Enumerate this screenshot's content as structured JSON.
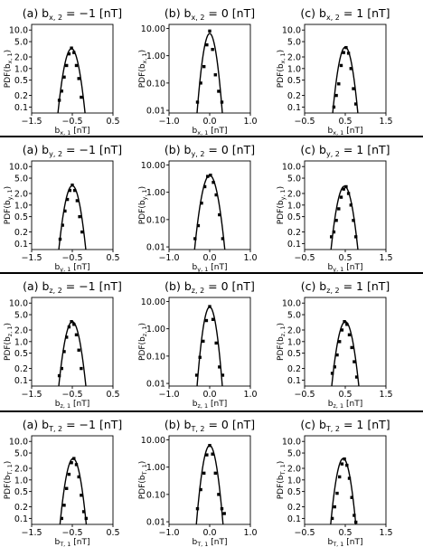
{
  "chart_data": [
    {
      "row": 0,
      "col": 0,
      "type": "scatter",
      "title": "(a) b",
      "title_sub": "x, 2",
      "title_rest": " = −1 [nT]",
      "xlabel": "b",
      "xlabel_sub": "x, 1",
      "xlabel_rest": " [nT]",
      "ylabel": "PDF(b",
      "ylabel_sub": "x, 1",
      "ylabel_rest": ")",
      "xlim": [
        -1.5,
        0.5
      ],
      "xticks": [
        -1.5,
        -0.5,
        0.5
      ],
      "xtick_labels": [
        "−1.5",
        "−0.5",
        "0.5"
      ],
      "yscale": "log",
      "ylim": [
        0.07,
        14
      ],
      "yticks": [
        0.1,
        0.2,
        0.5,
        1.0,
        2.0,
        5.0,
        10.0
      ],
      "ytick_labels": [
        "0.1",
        "0.2",
        "0.5",
        "1.0",
        "2.0",
        "5.0",
        "10.0"
      ],
      "fit": {
        "mu": -0.52,
        "sigma": 0.12,
        "amp": 3.3
      },
      "points": [
        [
          -0.82,
          0.15
        ],
        [
          -0.76,
          0.26
        ],
        [
          -0.7,
          0.6
        ],
        [
          -0.64,
          1.2
        ],
        [
          -0.58,
          2.4
        ],
        [
          -0.52,
          3.4
        ],
        [
          -0.46,
          2.6
        ],
        [
          -0.4,
          1.2
        ],
        [
          -0.34,
          0.55
        ],
        [
          -0.28,
          0.18
        ]
      ]
    },
    {
      "row": 0,
      "col": 1,
      "type": "scatter",
      "title": "(b) b",
      "title_sub": "x, 2",
      "title_rest": " = 0 [nT]",
      "xlabel": "b",
      "xlabel_sub": "x, 1",
      "xlabel_rest": " [nT]",
      "ylabel": "PDF(b",
      "ylabel_sub": "x, 1",
      "ylabel_rest": ")",
      "xlim": [
        -1.0,
        1.0
      ],
      "xticks": [
        -1.0,
        0.0,
        1.0
      ],
      "xtick_labels": [
        "−1.0",
        "0.0",
        "1.0"
      ],
      "yscale": "log",
      "ylim": [
        0.008,
        14
      ],
      "yticks": [
        0.01,
        0.1,
        1.0,
        10.0
      ],
      "ytick_labels": [
        "0.01",
        "0.10",
        "1.00",
        "10.00"
      ],
      "fit": {
        "mu": 0.0,
        "sigma": 0.085,
        "amp": 6.5
      },
      "points": [
        [
          -0.3,
          0.02
        ],
        [
          -0.22,
          0.1
        ],
        [
          -0.14,
          0.4
        ],
        [
          -0.07,
          2.5
        ],
        [
          0.0,
          8.0
        ],
        [
          0.07,
          1.7
        ],
        [
          0.14,
          0.2
        ],
        [
          0.22,
          0.05
        ],
        [
          0.3,
          0.02
        ]
      ]
    },
    {
      "row": 0,
      "col": 2,
      "type": "scatter",
      "title": "(c) b",
      "title_sub": "x, 2",
      "title_rest": " = 1 [nT]",
      "xlabel": "b",
      "xlabel_sub": "x, 1",
      "xlabel_rest": " [nT]",
      "ylabel": "PDF(b",
      "ylabel_sub": "x, 1",
      "ylabel_rest": ")",
      "xlim": [
        -0.5,
        1.5
      ],
      "xticks": [
        -0.5,
        0.5,
        1.5
      ],
      "xtick_labels": [
        "−0.5",
        "0.5",
        "1.5"
      ],
      "yscale": "log",
      "ylim": [
        0.07,
        14
      ],
      "yticks": [
        0.1,
        0.2,
        0.5,
        1.0,
        2.0,
        5.0,
        10.0
      ],
      "ytick_labels": [
        "0.1",
        "0.2",
        "0.5",
        "1.0",
        "2.0",
        "5.0",
        "10.0"
      ],
      "fit": {
        "mu": 0.5,
        "sigma": 0.11,
        "amp": 3.6
      },
      "points": [
        [
          0.22,
          0.1
        ],
        [
          0.28,
          0.2
        ],
        [
          0.34,
          0.4
        ],
        [
          0.4,
          1.2
        ],
        [
          0.46,
          2.6
        ],
        [
          0.52,
          3.5
        ],
        [
          0.58,
          2.5
        ],
        [
          0.64,
          1.0
        ],
        [
          0.7,
          0.3
        ],
        [
          0.76,
          0.12
        ]
      ]
    },
    {
      "row": 1,
      "col": 0,
      "type": "scatter",
      "title": "(a) b",
      "title_sub": "y, 2",
      "title_rest": " = −1 [nT]",
      "xlabel": "b",
      "xlabel_sub": "y, 1",
      "xlabel_rest": " [nT]",
      "ylabel": "PDF(b",
      "ylabel_sub": "y, 1",
      "ylabel_rest": ")",
      "xlim": [
        -1.5,
        0.5
      ],
      "xticks": [
        -1.5,
        -0.5,
        0.5
      ],
      "xtick_labels": [
        "−1.5",
        "−0.5",
        "0.5"
      ],
      "yscale": "log",
      "ylim": [
        0.07,
        14
      ],
      "yticks": [
        0.1,
        0.2,
        0.5,
        1.0,
        2.0,
        5.0,
        10.0
      ],
      "ytick_labels": [
        "0.1",
        "0.2",
        "0.5",
        "1.0",
        "2.0",
        "5.0",
        "10.0"
      ],
      "fit": {
        "mu": -0.5,
        "sigma": 0.12,
        "amp": 3.2
      },
      "points": [
        [
          -0.8,
          0.13
        ],
        [
          -0.74,
          0.3
        ],
        [
          -0.68,
          0.7
        ],
        [
          -0.62,
          1.4
        ],
        [
          -0.56,
          2.4
        ],
        [
          -0.5,
          3.3
        ],
        [
          -0.44,
          2.4
        ],
        [
          -0.38,
          1.3
        ],
        [
          -0.32,
          0.5
        ],
        [
          -0.26,
          0.2
        ]
      ]
    },
    {
      "row": 1,
      "col": 1,
      "type": "scatter",
      "title": "(b) b",
      "title_sub": "y, 2",
      "title_rest": " = 0 [nT]",
      "xlabel": "b",
      "xlabel_sub": "y, 1",
      "xlabel_rest": " [nT]",
      "ylabel": "PDF(b",
      "ylabel_sub": "y, 1",
      "ylabel_rest": ")",
      "xlim": [
        -1.0,
        1.0
      ],
      "xticks": [
        -1.0,
        0.0,
        1.0
      ],
      "xtick_labels": [
        "−1.0",
        "0.0",
        "1.0"
      ],
      "yscale": "log",
      "ylim": [
        0.008,
        14
      ],
      "yticks": [
        0.01,
        0.1,
        1.0,
        10.0
      ],
      "ytick_labels": [
        "0.01",
        "0.10",
        "1.00",
        "10.00"
      ],
      "fit": {
        "mu": 0.0,
        "sigma": 0.105,
        "amp": 4.2
      },
      "points": [
        [
          -0.36,
          0.02
        ],
        [
          -0.28,
          0.06
        ],
        [
          -0.2,
          0.4
        ],
        [
          -0.12,
          1.6
        ],
        [
          -0.05,
          3.8
        ],
        [
          0.02,
          4.2
        ],
        [
          0.09,
          2.3
        ],
        [
          0.16,
          0.8
        ],
        [
          0.24,
          0.15
        ],
        [
          0.32,
          0.02
        ]
      ]
    },
    {
      "row": 1,
      "col": 2,
      "type": "scatter",
      "title": "(c) b",
      "title_sub": "y, 2",
      "title_rest": " = 1 [nT]",
      "xlabel": "b",
      "xlabel_sub": "y, 1",
      "xlabel_rest": " [nT]",
      "ylabel": "PDF(b",
      "ylabel_sub": "y, 1",
      "ylabel_rest": ")",
      "xlim": [
        -0.5,
        1.5
      ],
      "xticks": [
        -0.5,
        0.5,
        1.5
      ],
      "xtick_labels": [
        "−0.5",
        "0.5",
        "1.5"
      ],
      "yscale": "log",
      "ylim": [
        0.07,
        14
      ],
      "yticks": [
        0.1,
        0.2,
        0.5,
        1.0,
        2.0,
        5.0,
        10.0
      ],
      "ytick_labels": [
        "0.1",
        "0.2",
        "0.5",
        "1.0",
        "2.0",
        "5.0",
        "10.0"
      ],
      "fit": {
        "mu": 0.48,
        "sigma": 0.12,
        "amp": 3.1
      },
      "points": [
        [
          0.16,
          0.15
        ],
        [
          0.22,
          0.2
        ],
        [
          0.28,
          0.4
        ],
        [
          0.34,
          0.8
        ],
        [
          0.4,
          1.6
        ],
        [
          0.46,
          2.6
        ],
        [
          0.52,
          3.0
        ],
        [
          0.58,
          2.0
        ],
        [
          0.64,
          1.0
        ],
        [
          0.7,
          0.4
        ],
        [
          0.76,
          0.15
        ]
      ]
    },
    {
      "row": 2,
      "col": 0,
      "type": "scatter",
      "title": "(a) b",
      "title_sub": "z, 2",
      "title_rest": " = −1 [nT]",
      "xlabel": "b",
      "xlabel_sub": "z, 1",
      "xlabel_rest": " [nT]",
      "ylabel": "PDF(b",
      "ylabel_sub": "z, 1",
      "ylabel_rest": ")",
      "xlim": [
        -1.5,
        0.5
      ],
      "xticks": [
        -1.5,
        -0.5,
        0.5
      ],
      "xtick_labels": [
        "−1.5",
        "−0.5",
        "0.5"
      ],
      "yscale": "log",
      "ylim": [
        0.07,
        14
      ],
      "yticks": [
        0.1,
        0.2,
        0.5,
        1.0,
        2.0,
        5.0,
        10.0
      ],
      "ytick_labels": [
        "0.1",
        "0.2",
        "0.5",
        "1.0",
        "2.0",
        "5.0",
        "10.0"
      ],
      "fit": {
        "mu": -0.5,
        "sigma": 0.12,
        "amp": 3.3
      },
      "points": [
        [
          -0.82,
          0.13
        ],
        [
          -0.76,
          0.2
        ],
        [
          -0.7,
          0.55
        ],
        [
          -0.64,
          1.3
        ],
        [
          -0.58,
          2.4
        ],
        [
          -0.52,
          3.3
        ],
        [
          -0.46,
          2.8
        ],
        [
          -0.4,
          1.5
        ],
        [
          -0.34,
          0.6
        ],
        [
          -0.28,
          0.2
        ]
      ]
    },
    {
      "row": 2,
      "col": 1,
      "type": "scatter",
      "title": "(b) b",
      "title_sub": "z, 2",
      "title_rest": " = 0 [nT]",
      "xlabel": "b",
      "xlabel_sub": "z, 1",
      "xlabel_rest": " [nT]",
      "ylabel": "PDF(b",
      "ylabel_sub": "z, 1",
      "ylabel_rest": ")",
      "xlim": [
        -1.0,
        1.0
      ],
      "xticks": [
        -1.0,
        0.0,
        1.0
      ],
      "xtick_labels": [
        "−1.0",
        "0.0",
        "1.0"
      ],
      "yscale": "log",
      "ylim": [
        0.008,
        14
      ],
      "yticks": [
        0.01,
        0.1,
        1.0,
        10.0
      ],
      "ytick_labels": [
        "0.01",
        "0.10",
        "1.00",
        "10.00"
      ],
      "fit": {
        "mu": 0.0,
        "sigma": 0.085,
        "amp": 6.3
      },
      "points": [
        [
          -0.32,
          0.02
        ],
        [
          -0.24,
          0.09
        ],
        [
          -0.16,
          0.35
        ],
        [
          -0.08,
          2.0
        ],
        [
          0.0,
          6.5
        ],
        [
          0.08,
          2.2
        ],
        [
          0.16,
          0.3
        ],
        [
          0.24,
          0.04
        ],
        [
          0.32,
          0.02
        ]
      ]
    },
    {
      "row": 2,
      "col": 2,
      "type": "scatter",
      "title": "(c) b",
      "title_sub": "z, 2",
      "title_rest": " = 1 [nT]",
      "xlabel": "b",
      "xlabel_sub": "z, 1",
      "xlabel_rest": " [nT]",
      "ylabel": "PDF(b",
      "ylabel_sub": "z, 1",
      "ylabel_rest": ")",
      "xlim": [
        -0.5,
        1.5
      ],
      "xticks": [
        -0.5,
        0.5,
        1.5
      ],
      "xtick_labels": [
        "−0.5",
        "0.5",
        "1.5"
      ],
      "yscale": "log",
      "ylim": [
        0.07,
        14
      ],
      "yticks": [
        0.1,
        0.2,
        0.5,
        1.0,
        2.0,
        5.0,
        10.0
      ],
      "ytick_labels": [
        "0.1",
        "0.2",
        "0.5",
        "1.0",
        "2.0",
        "5.0",
        "10.0"
      ],
      "fit": {
        "mu": 0.5,
        "sigma": 0.12,
        "amp": 3.3
      },
      "points": [
        [
          0.18,
          0.15
        ],
        [
          0.24,
          0.22
        ],
        [
          0.3,
          0.45
        ],
        [
          0.36,
          1.0
        ],
        [
          0.42,
          2.0
        ],
        [
          0.48,
          3.3
        ],
        [
          0.54,
          2.8
        ],
        [
          0.6,
          1.5
        ],
        [
          0.66,
          0.7
        ],
        [
          0.72,
          0.3
        ],
        [
          0.78,
          0.12
        ]
      ]
    },
    {
      "row": 3,
      "col": 0,
      "type": "scatter",
      "title": "(a) b",
      "title_sub": "T, 2",
      "title_rest": " = −1 [nT]",
      "xlabel": "b",
      "xlabel_sub": "T, 1",
      "xlabel_rest": " [nT]",
      "ylabel": "PDF(b",
      "ylabel_sub": "T, 1",
      "ylabel_rest": ")",
      "xlim": [
        -1.5,
        0.5
      ],
      "xticks": [
        -1.5,
        -0.5,
        0.5
      ],
      "xtick_labels": [
        "−1.5",
        "−0.5",
        "0.5"
      ],
      "yscale": "log",
      "ylim": [
        0.07,
        14
      ],
      "yticks": [
        0.1,
        0.2,
        0.5,
        1.0,
        2.0,
        5.0,
        10.0
      ],
      "ytick_labels": [
        "0.1",
        "0.2",
        "0.5",
        "1.0",
        "2.0",
        "5.0",
        "10.0"
      ],
      "fit": {
        "mu": -0.48,
        "sigma": 0.115,
        "amp": 3.6
      },
      "points": [
        [
          -0.76,
          0.1
        ],
        [
          -0.7,
          0.22
        ],
        [
          -0.64,
          0.6
        ],
        [
          -0.58,
          1.4
        ],
        [
          -0.52,
          2.8
        ],
        [
          -0.46,
          3.6
        ],
        [
          -0.4,
          2.5
        ],
        [
          -0.34,
          1.2
        ],
        [
          -0.28,
          0.4
        ],
        [
          -0.22,
          0.15
        ],
        [
          -0.16,
          0.1
        ]
      ]
    },
    {
      "row": 3,
      "col": 1,
      "type": "scatter",
      "title": "(b) b",
      "title_sub": "T, 2",
      "title_rest": " = 0 [nT]",
      "xlabel": "b",
      "xlabel_sub": "T, 1",
      "xlabel_rest": " [nT]",
      "ylabel": "PDF(b",
      "ylabel_sub": "T, 1",
      "ylabel_rest": ")",
      "xlim": [
        -1.0,
        1.0
      ],
      "xticks": [
        -1.0,
        0.0,
        1.0
      ],
      "xtick_labels": [
        "−1.0",
        "0.0",
        "1.0"
      ],
      "yscale": "log",
      "ylim": [
        0.008,
        14
      ],
      "yticks": [
        0.01,
        0.1,
        1.0,
        10.0
      ],
      "ytick_labels": [
        "0.01",
        "0.10",
        "1.00",
        "10.00"
      ],
      "fit": {
        "mu": 0.0,
        "sigma": 0.09,
        "amp": 6.2
      },
      "points": [
        [
          -0.3,
          0.03
        ],
        [
          -0.22,
          0.15
        ],
        [
          -0.14,
          0.6
        ],
        [
          -0.07,
          2.8
        ],
        [
          0.0,
          6.2
        ],
        [
          0.07,
          3.0
        ],
        [
          0.14,
          0.6
        ],
        [
          0.22,
          0.1
        ],
        [
          0.3,
          0.03
        ],
        [
          0.36,
          0.02
        ]
      ]
    },
    {
      "row": 3,
      "col": 2,
      "type": "scatter",
      "title": "(c) b",
      "title_sub": "T, 2",
      "title_rest": " = 1 [nT]",
      "xlabel": "b",
      "xlabel_sub": "T, 1",
      "xlabel_rest": " [nT]",
      "ylabel": "PDF(b",
      "ylabel_sub": "T, 1",
      "ylabel_rest": ")",
      "xlim": [
        -0.5,
        1.5
      ],
      "xticks": [
        -0.5,
        0.5,
        1.5
      ],
      "xtick_labels": [
        "−0.5",
        "0.5",
        "1.5"
      ],
      "yscale": "log",
      "ylim": [
        0.07,
        14
      ],
      "yticks": [
        0.1,
        0.2,
        0.5,
        1.0,
        2.0,
        5.0,
        10.0
      ],
      "ytick_labels": [
        "0.1",
        "0.2",
        "0.5",
        "1.0",
        "2.0",
        "5.0",
        "10.0"
      ],
      "fit": {
        "mu": 0.45,
        "sigma": 0.11,
        "amp": 3.6
      },
      "points": [
        [
          0.18,
          0.1
        ],
        [
          0.24,
          0.2
        ],
        [
          0.3,
          0.45
        ],
        [
          0.36,
          1.2
        ],
        [
          0.42,
          2.6
        ],
        [
          0.48,
          3.5
        ],
        [
          0.54,
          2.4
        ],
        [
          0.6,
          1.1
        ],
        [
          0.66,
          0.35
        ],
        [
          0.72,
          0.12
        ],
        [
          0.76,
          0.08
        ]
      ]
    }
  ]
}
